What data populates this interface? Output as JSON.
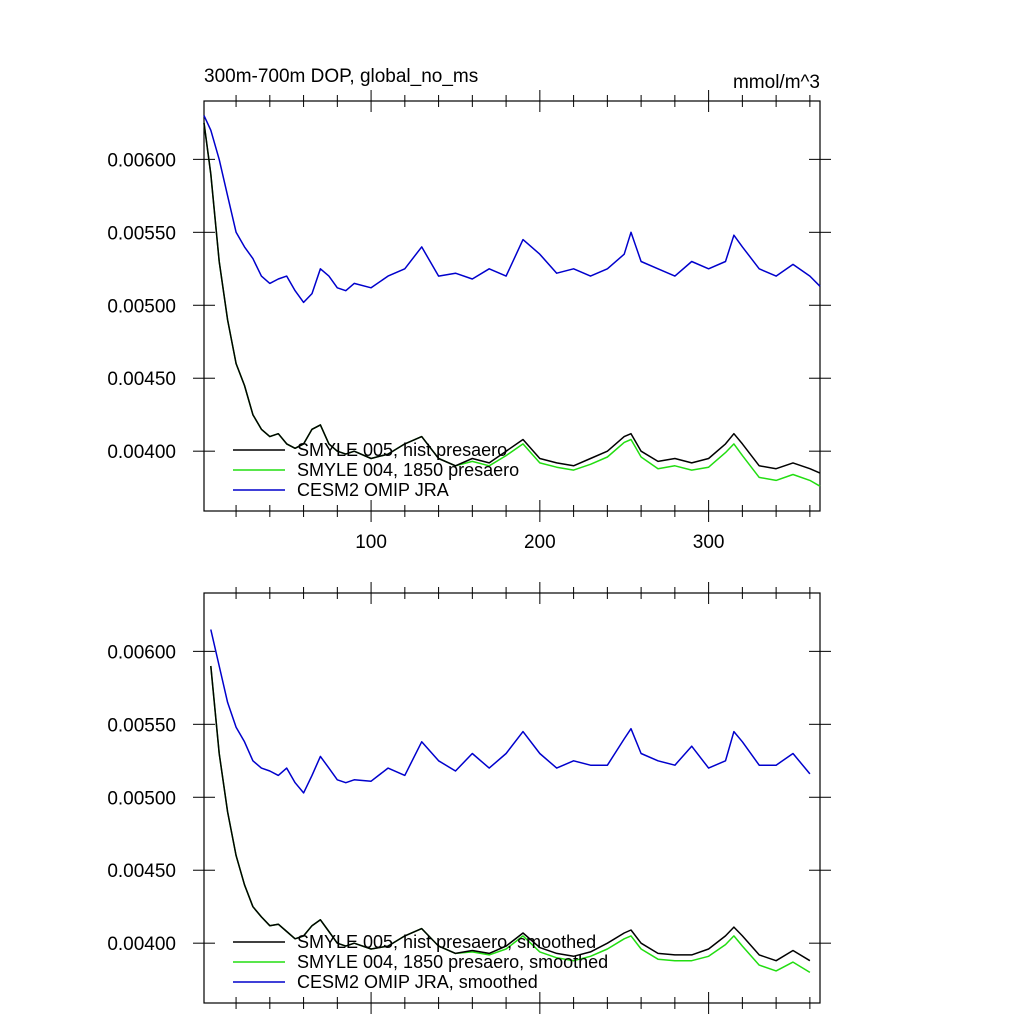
{
  "chart_data": [
    {
      "type": "line",
      "title": "300m-700m DOP, global_no_ms",
      "units": "mmol/m^3",
      "xlim": [
        1,
        366
      ],
      "ylim": [
        0.00359,
        0.0064
      ],
      "xticks": [
        100,
        200,
        300
      ],
      "xticklabels": [
        "100",
        "200",
        "300"
      ],
      "yticks": [
        0.004,
        0.0045,
        0.005,
        0.0055,
        0.006
      ],
      "yticklabels": [
        "0.00400",
        "0.00450",
        "0.00500",
        "0.00550",
        "0.00600"
      ],
      "legend_position": "bottom-left",
      "x": [
        1,
        5,
        10,
        15,
        20,
        25,
        30,
        35,
        40,
        45,
        50,
        55,
        60,
        65,
        70,
        75,
        80,
        85,
        90,
        100,
        110,
        120,
        130,
        140,
        150,
        160,
        170,
        180,
        190,
        200,
        210,
        220,
        230,
        240,
        250,
        254,
        260,
        270,
        280,
        290,
        300,
        310,
        315,
        320,
        330,
        340,
        350,
        360,
        366
      ],
      "series": [
        {
          "name": "SMYLE 005, hist presaero",
          "color": "#000000",
          "values": [
            0.00625,
            0.0059,
            0.0053,
            0.0049,
            0.0046,
            0.00445,
            0.00425,
            0.00415,
            0.0041,
            0.00412,
            0.00405,
            0.00402,
            0.00405,
            0.00415,
            0.00418,
            0.00405,
            0.004,
            0.00398,
            0.004,
            0.00395,
            0.00398,
            0.00405,
            0.0041,
            0.00395,
            0.0039,
            0.00395,
            0.00392,
            0.004,
            0.00408,
            0.00395,
            0.00392,
            0.0039,
            0.00395,
            0.004,
            0.0041,
            0.00412,
            0.004,
            0.00393,
            0.00395,
            0.00392,
            0.00395,
            0.00405,
            0.00412,
            0.00405,
            0.0039,
            0.00388,
            0.00392,
            0.00388,
            0.00385
          ]
        },
        {
          "name": "SMYLE 004, 1850 presaero",
          "color": "#22dd11",
          "values": [
            0.00625,
            0.0059,
            0.0053,
            0.0049,
            0.0046,
            0.00445,
            0.00425,
            0.00415,
            0.0041,
            0.00412,
            0.00405,
            0.00402,
            0.00405,
            0.00415,
            0.00418,
            0.00405,
            0.004,
            0.00398,
            0.004,
            0.00395,
            0.00398,
            0.00405,
            0.0041,
            0.00395,
            0.0039,
            0.00393,
            0.0039,
            0.00397,
            0.00405,
            0.00392,
            0.00389,
            0.00387,
            0.00391,
            0.00396,
            0.00406,
            0.00408,
            0.00396,
            0.00388,
            0.0039,
            0.00387,
            0.00389,
            0.00399,
            0.00405,
            0.00397,
            0.00382,
            0.0038,
            0.00384,
            0.0038,
            0.00376
          ]
        },
        {
          "name": "CESM2 OMIP JRA",
          "color": "#0000cc",
          "values": [
            0.0063,
            0.0062,
            0.006,
            0.00575,
            0.0055,
            0.0054,
            0.00532,
            0.0052,
            0.00515,
            0.00518,
            0.0052,
            0.0051,
            0.00502,
            0.00508,
            0.00525,
            0.0052,
            0.00512,
            0.0051,
            0.00515,
            0.00512,
            0.0052,
            0.00525,
            0.0054,
            0.0052,
            0.00522,
            0.00518,
            0.00525,
            0.0052,
            0.00545,
            0.00535,
            0.00522,
            0.00525,
            0.0052,
            0.00525,
            0.00535,
            0.0055,
            0.0053,
            0.00525,
            0.0052,
            0.0053,
            0.00525,
            0.0053,
            0.00548,
            0.0054,
            0.00525,
            0.0052,
            0.00528,
            0.0052,
            0.00513
          ]
        }
      ]
    },
    {
      "type": "line",
      "xlim": [
        1,
        366
      ],
      "ylim": [
        0.00359,
        0.0064
      ],
      "xticks": [
        100,
        200,
        300
      ],
      "yticks": [
        0.004,
        0.0045,
        0.005,
        0.0055,
        0.006
      ],
      "yticklabels": [
        "0.00400",
        "0.00450",
        "0.00500",
        "0.00550",
        "0.00600"
      ],
      "legend_position": "bottom-left",
      "x": [
        5,
        10,
        15,
        20,
        25,
        30,
        35,
        40,
        45,
        50,
        55,
        60,
        65,
        70,
        75,
        80,
        85,
        90,
        100,
        110,
        120,
        130,
        140,
        150,
        160,
        170,
        180,
        190,
        200,
        210,
        220,
        230,
        240,
        250,
        254,
        260,
        270,
        280,
        290,
        300,
        310,
        315,
        320,
        330,
        340,
        350,
        360
      ],
      "series": [
        {
          "name": "SMYLE 005, hist presaero, smoothed",
          "color": "#000000",
          "values": [
            0.0059,
            0.0053,
            0.0049,
            0.0046,
            0.0044,
            0.00425,
            0.00418,
            0.00412,
            0.00413,
            0.00408,
            0.00403,
            0.00405,
            0.00412,
            0.00416,
            0.00408,
            0.004,
            0.00398,
            0.004,
            0.00396,
            0.00398,
            0.00405,
            0.0041,
            0.00398,
            0.00393,
            0.00395,
            0.00393,
            0.00398,
            0.00407,
            0.00397,
            0.00393,
            0.00391,
            0.00394,
            0.004,
            0.00407,
            0.00409,
            0.004,
            0.00393,
            0.00392,
            0.00392,
            0.00396,
            0.00405,
            0.00411,
            0.00405,
            0.00392,
            0.00388,
            0.00395,
            0.00388
          ]
        },
        {
          "name": "SMYLE 004, 1850 presaero, smoothed",
          "color": "#22dd11",
          "values": [
            0.0059,
            0.0053,
            0.0049,
            0.0046,
            0.0044,
            0.00425,
            0.00418,
            0.00412,
            0.00413,
            0.00408,
            0.00403,
            0.00405,
            0.00412,
            0.00416,
            0.00408,
            0.004,
            0.00398,
            0.004,
            0.00396,
            0.00398,
            0.00405,
            0.0041,
            0.00398,
            0.00393,
            0.00394,
            0.00392,
            0.00396,
            0.00405,
            0.00394,
            0.0039,
            0.00388,
            0.00391,
            0.00396,
            0.00403,
            0.00405,
            0.00396,
            0.00389,
            0.00388,
            0.00388,
            0.00391,
            0.00399,
            0.00405,
            0.00398,
            0.00385,
            0.00381,
            0.00387,
            0.0038
          ]
        },
        {
          "name": "CESM2 OMIP JRA, smoothed",
          "color": "#0000cc",
          "values": [
            0.00615,
            0.0059,
            0.00565,
            0.00548,
            0.00538,
            0.00525,
            0.0052,
            0.00518,
            0.00515,
            0.0052,
            0.0051,
            0.00503,
            0.00515,
            0.00528,
            0.0052,
            0.00512,
            0.0051,
            0.00512,
            0.00511,
            0.0052,
            0.00515,
            0.00538,
            0.00525,
            0.00518,
            0.0053,
            0.0052,
            0.0053,
            0.00545,
            0.0053,
            0.0052,
            0.00525,
            0.00522,
            0.00522,
            0.0054,
            0.00547,
            0.0053,
            0.00525,
            0.00522,
            0.00535,
            0.0052,
            0.00525,
            0.00545,
            0.00538,
            0.00522,
            0.00522,
            0.0053,
            0.00516
          ]
        }
      ]
    }
  ]
}
